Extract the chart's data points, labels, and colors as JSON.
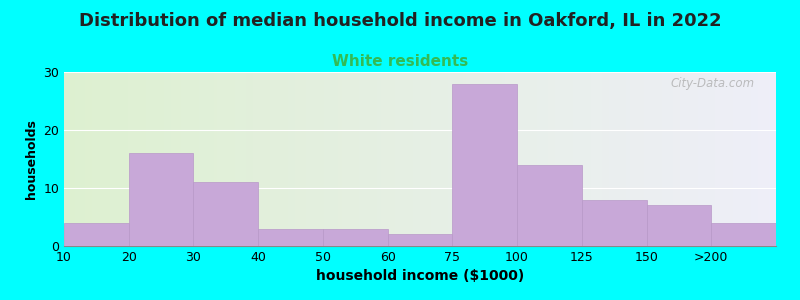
{
  "title": "Distribution of median household income in Oakford, IL in 2022",
  "subtitle": "White residents",
  "xlabel": "household income ($1000)",
  "ylabel": "households",
  "title_fontsize": 13,
  "subtitle_fontsize": 11,
  "subtitle_color": "#33bb55",
  "bar_color": "#c8a8d8",
  "bar_edgecolor": "#b898c8",
  "background_color": "#00ffff",
  "plot_bg_left": "#ddf0d0",
  "plot_bg_right": "#eeeef8",
  "categories": [
    "10",
    "20",
    "30",
    "40",
    "50",
    "60",
    "75",
    "100",
    "125",
    "150",
    ">200"
  ],
  "values": [
    4,
    16,
    11,
    3,
    3,
    2,
    28,
    14,
    8,
    7,
    4
  ],
  "ylim": [
    0,
    30
  ],
  "yticks": [
    0,
    10,
    20,
    30
  ],
  "watermark": "City-Data.com",
  "bar_edges": [
    0,
    1,
    2,
    3,
    4,
    5,
    6,
    7,
    8,
    9,
    10,
    11
  ]
}
